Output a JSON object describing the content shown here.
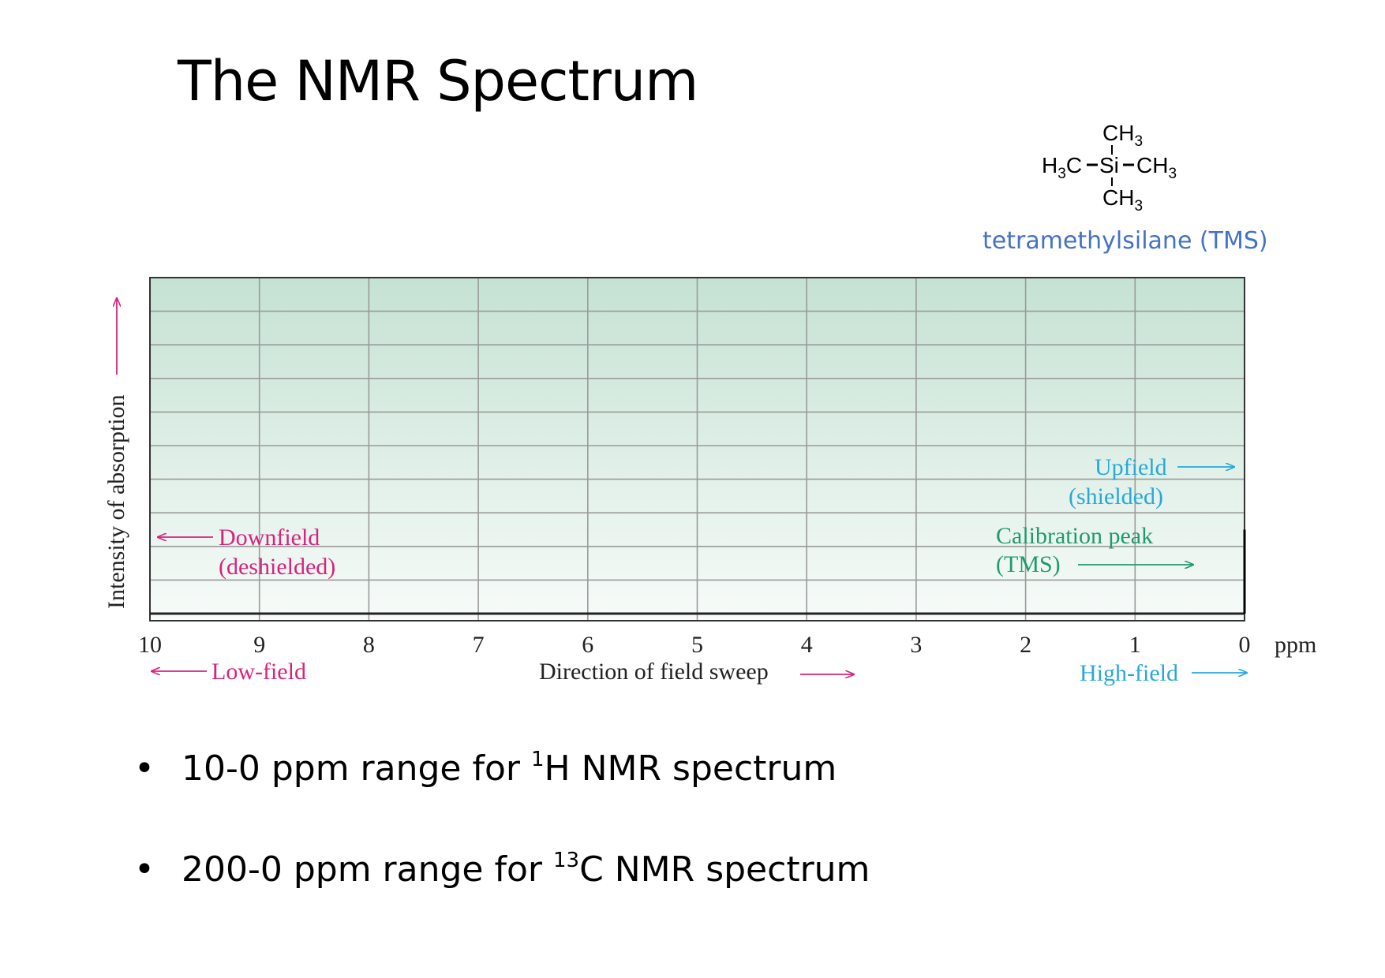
{
  "slide": {
    "title": "The NMR Spectrum"
  },
  "tms": {
    "top_group": "CH",
    "top_sub": "3",
    "left_group": "H",
    "left_sub": "3",
    "left_tail": "C",
    "center_atom": "Si",
    "right_group": "CH",
    "right_sub": "3",
    "bottom_group": "CH",
    "bottom_sub": "3",
    "name": "tetramethylsilane (TMS)"
  },
  "chart_data": {
    "type": "line",
    "x_unit": "ppm",
    "x_ticks": [
      10,
      9,
      8,
      7,
      6,
      5,
      4,
      3,
      2,
      1,
      0
    ],
    "xlim": [
      10,
      0
    ],
    "x_reversed": true,
    "ylabel": "Intensity of absorption",
    "xlabel": "Direction of field sweep",
    "grid": true,
    "horizontal_grid_lines": 10,
    "series": [
      {
        "peaks": [
          {
            "x": 0,
            "relative_intensity": 0.25
          }
        ]
      }
    ],
    "annotations": {
      "downfield": "Downfield",
      "deshielded": "(deshielded)",
      "upfield": "Upfield",
      "shielded": "(shielded)",
      "calibration": "Calibration peak",
      "calibration_tms": "(TMS)",
      "low_field": "Low-field",
      "high_field": "High-field"
    },
    "colors": {
      "magenta": "#d6247d",
      "cyan": "#29a8d6",
      "green": "#1f9b6b",
      "grid": "#9a9a9a",
      "plot_top": "#c5e2d3",
      "plot_bottom": "#f7fbf9"
    }
  },
  "bullets": [
    {
      "dot": "•",
      "before": "10-0 ppm range for ",
      "sup": "1",
      "after": "H NMR spectrum"
    },
    {
      "dot": "•",
      "before": "200-0 ppm range for ",
      "sup": "13",
      "after": "C NMR spectrum"
    }
  ]
}
